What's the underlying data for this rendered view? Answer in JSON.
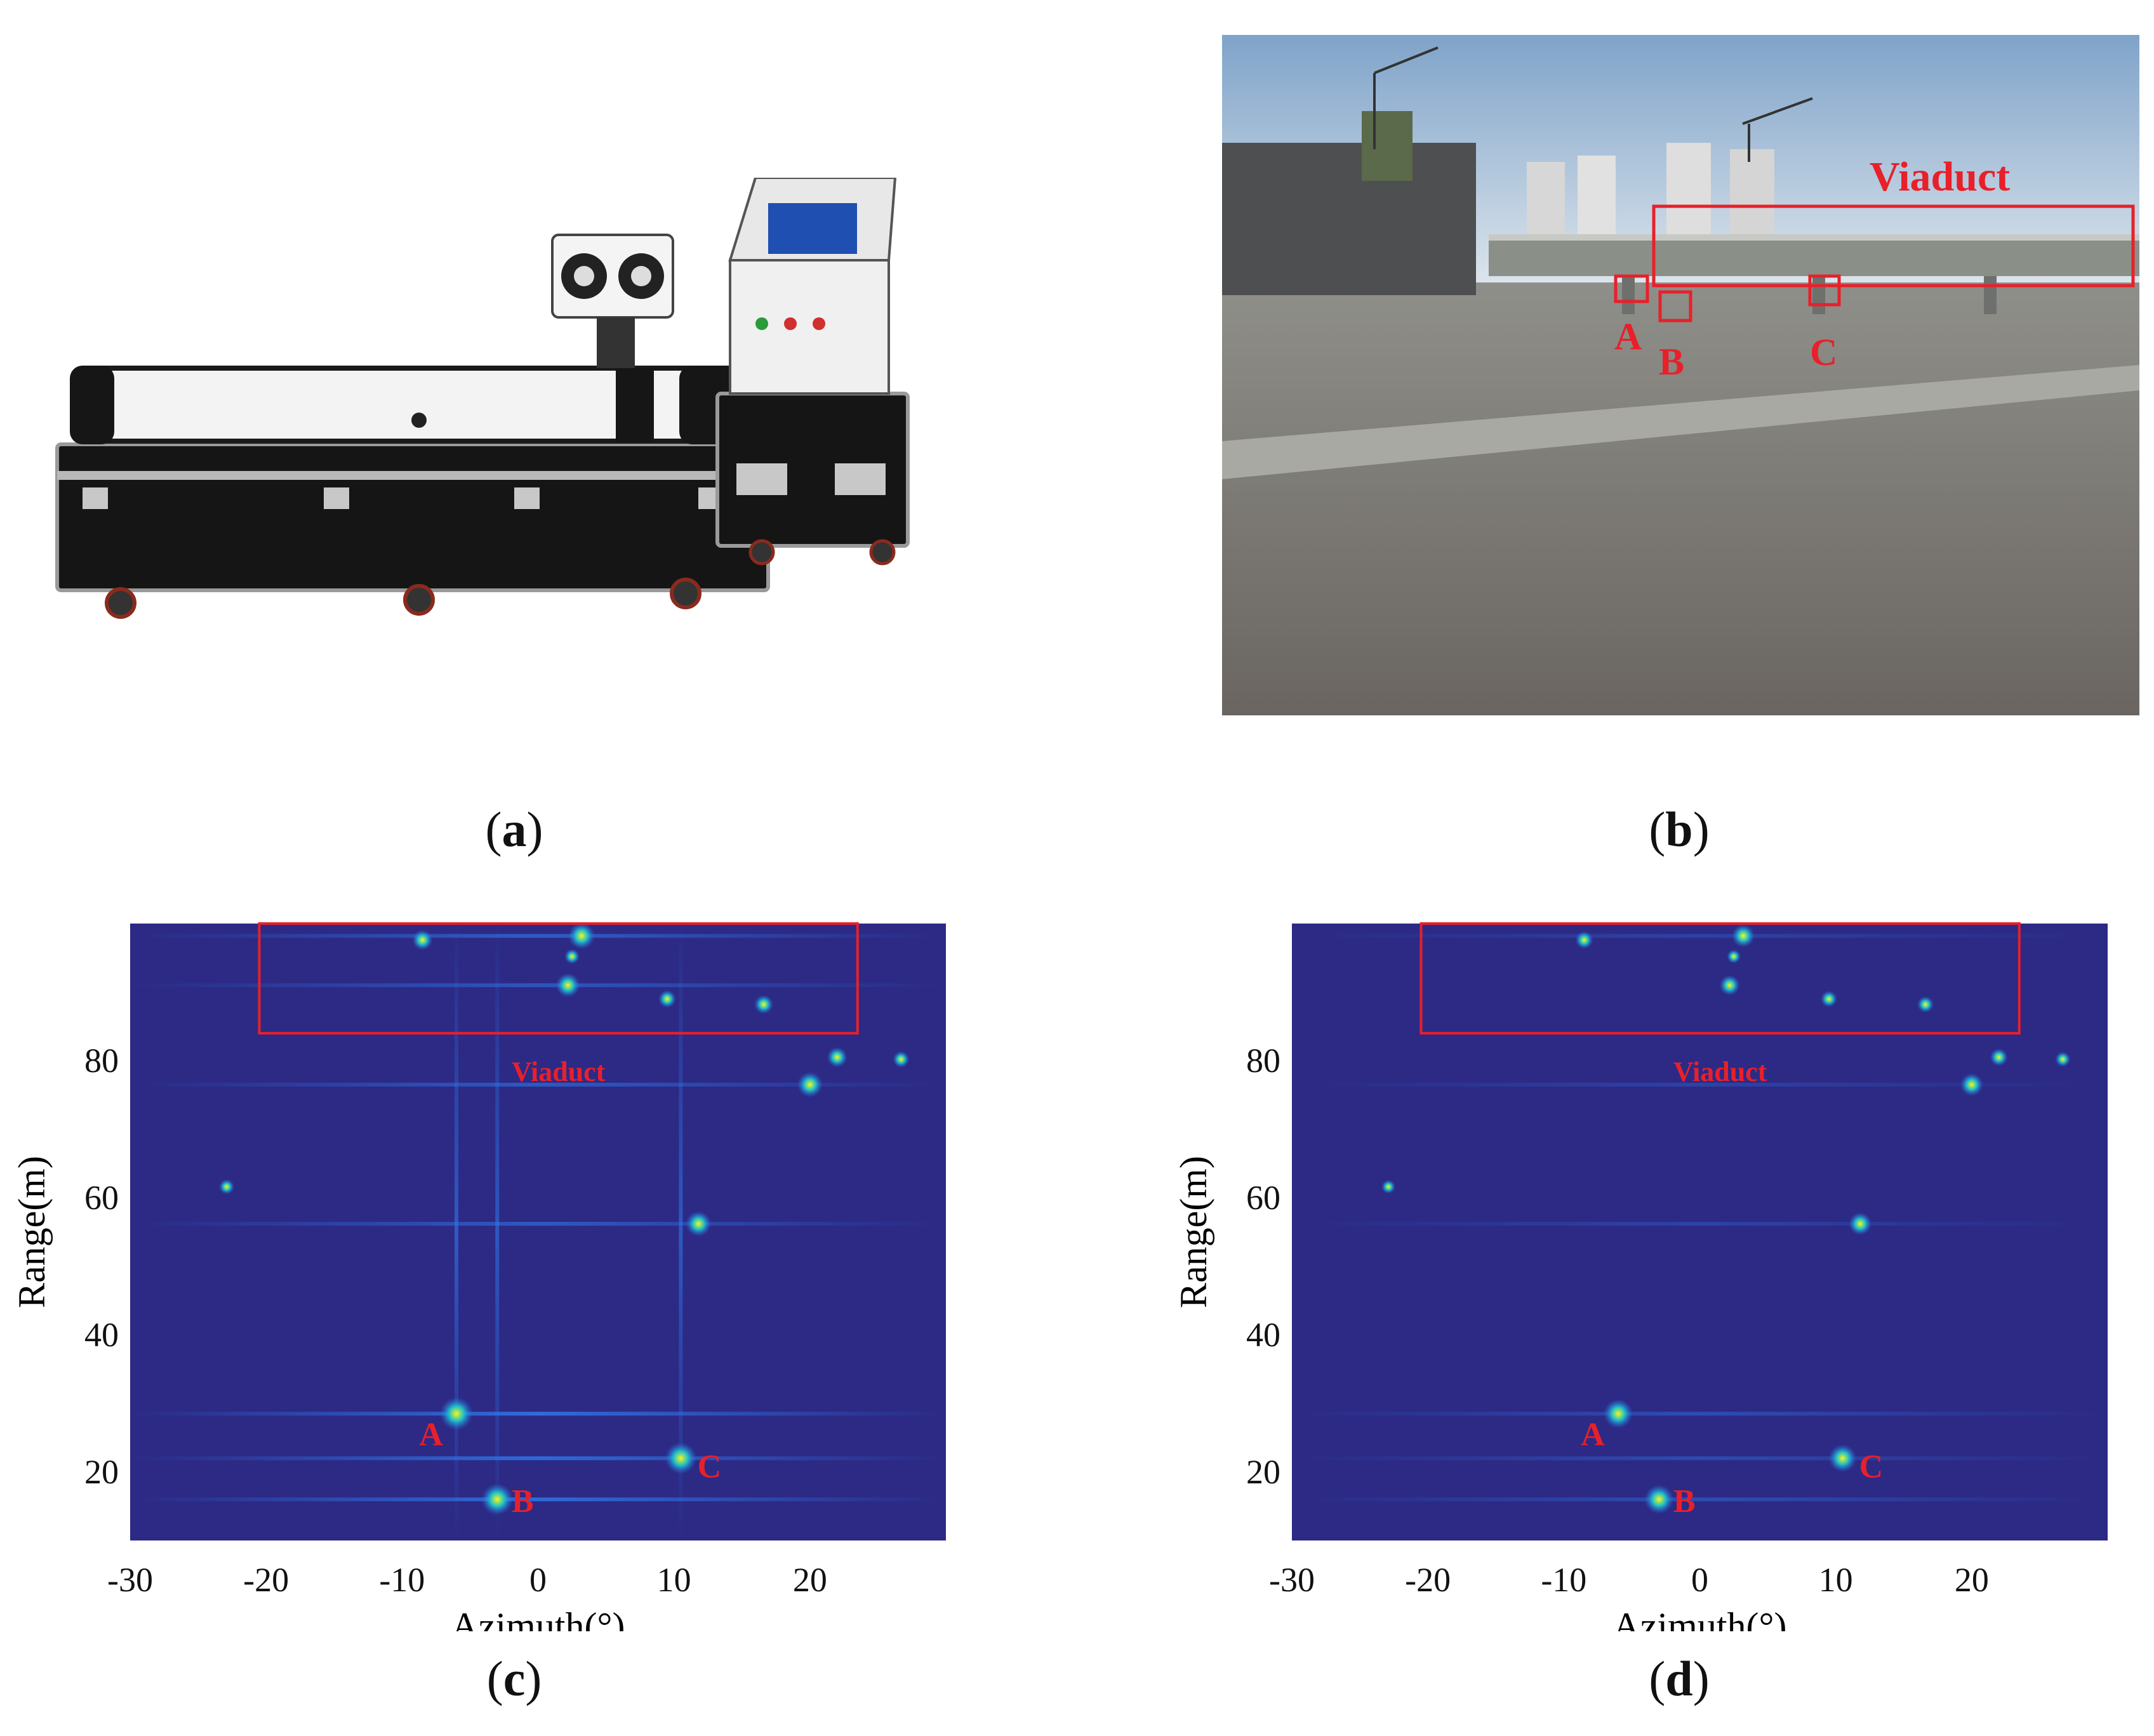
{
  "panels": {
    "a": {
      "label": "a"
    },
    "b": {
      "label": "b",
      "annotation": "Viaduct",
      "targets": [
        "A",
        "B",
        "C"
      ]
    },
    "c": {
      "label": "c",
      "annotation": "Viaduct",
      "targets": [
        "A",
        "B",
        "C"
      ]
    },
    "d": {
      "label": "d",
      "annotation": "Viaduct",
      "targets": [
        "A",
        "B",
        "C"
      ]
    }
  },
  "colors": {
    "background": "#2c2a85",
    "annotation": "#e8202a",
    "hot": "#f6f71a",
    "warm": "#1fc0c8",
    "cool": "#2b68e8"
  },
  "chart_data": [
    {
      "type": "heatmap",
      "panel": "c",
      "title": "",
      "xlabel": "Azimuth(°)",
      "ylabel": "Range(m)",
      "xlim": [
        -30,
        30
      ],
      "ylim": [
        10,
        100
      ],
      "xticks": [
        -30,
        -20,
        -10,
        0,
        10,
        20
      ],
      "yticks": [
        20,
        40,
        60,
        80
      ],
      "annotation_box": {
        "x": [
          -20.5,
          23.5
        ],
        "y": [
          84,
          100
        ]
      },
      "targets": [
        {
          "label": "A",
          "azimuth": -6,
          "range": 28.5
        },
        {
          "label": "B",
          "azimuth": -3,
          "range": 16
        },
        {
          "label": "C",
          "azimuth": 10.5,
          "range": 22
        }
      ],
      "peaks": [
        {
          "azimuth": -6,
          "range": 28.5,
          "intensity": 1.0
        },
        {
          "azimuth": -3,
          "range": 16,
          "intensity": 0.95
        },
        {
          "azimuth": 10.5,
          "range": 22,
          "intensity": 0.95
        },
        {
          "azimuth": 11.8,
          "range": 56.2,
          "intensity": 0.7
        },
        {
          "azimuth": 20,
          "range": 76.5,
          "intensity": 0.7
        },
        {
          "azimuth": 22,
          "range": 80.5,
          "intensity": 0.5
        },
        {
          "azimuth": 26.7,
          "range": 80.2,
          "intensity": 0.35
        },
        {
          "azimuth": 3.2,
          "range": 98.2,
          "intensity": 0.75
        },
        {
          "azimuth": -8.5,
          "range": 97.6,
          "intensity": 0.5
        },
        {
          "azimuth": 2.2,
          "range": 91,
          "intensity": 0.65
        },
        {
          "azimuth": 9.5,
          "range": 89,
          "intensity": 0.4
        },
        {
          "azimuth": 16.6,
          "range": 88.2,
          "intensity": 0.45
        },
        {
          "azimuth": 2.5,
          "range": 95.2,
          "intensity": 0.3
        },
        {
          "azimuth": -22.9,
          "range": 61.6,
          "intensity": 0.3
        }
      ]
    },
    {
      "type": "heatmap",
      "panel": "d",
      "title": "",
      "xlabel": "Azimuth(°)",
      "ylabel": "Range(m)",
      "xlim": [
        -30,
        30
      ],
      "ylim": [
        10,
        100
      ],
      "xticks": [
        -30,
        -20,
        -10,
        0,
        10,
        20
      ],
      "yticks": [
        20,
        40,
        60,
        80
      ],
      "annotation_box": {
        "x": [
          -20.5,
          23.5
        ],
        "y": [
          84,
          100
        ]
      },
      "targets": [
        {
          "label": "A",
          "azimuth": -6,
          "range": 28.5
        },
        {
          "label": "B",
          "azimuth": -3,
          "range": 16
        },
        {
          "label": "C",
          "azimuth": 10.5,
          "range": 22
        }
      ],
      "peaks": [
        {
          "azimuth": -6,
          "range": 28.5,
          "intensity": 0.85
        },
        {
          "azimuth": -3,
          "range": 16,
          "intensity": 0.85
        },
        {
          "azimuth": 10.5,
          "range": 22,
          "intensity": 0.8
        },
        {
          "azimuth": 11.8,
          "range": 56.2,
          "intensity": 0.6
        },
        {
          "azimuth": 20,
          "range": 76.5,
          "intensity": 0.6
        },
        {
          "azimuth": 22,
          "range": 80.5,
          "intensity": 0.4
        },
        {
          "azimuth": 26.7,
          "range": 80.2,
          "intensity": 0.3
        },
        {
          "azimuth": 3.2,
          "range": 98.2,
          "intensity": 0.6
        },
        {
          "azimuth": -8.5,
          "range": 97.6,
          "intensity": 0.4
        },
        {
          "azimuth": 2.2,
          "range": 91,
          "intensity": 0.5
        },
        {
          "azimuth": 9.5,
          "range": 89,
          "intensity": 0.35
        },
        {
          "azimuth": 16.6,
          "range": 88.2,
          "intensity": 0.35
        },
        {
          "azimuth": 2.5,
          "range": 95.2,
          "intensity": 0.25
        },
        {
          "azimuth": -22.9,
          "range": 61.6,
          "intensity": 0.25
        }
      ]
    }
  ]
}
